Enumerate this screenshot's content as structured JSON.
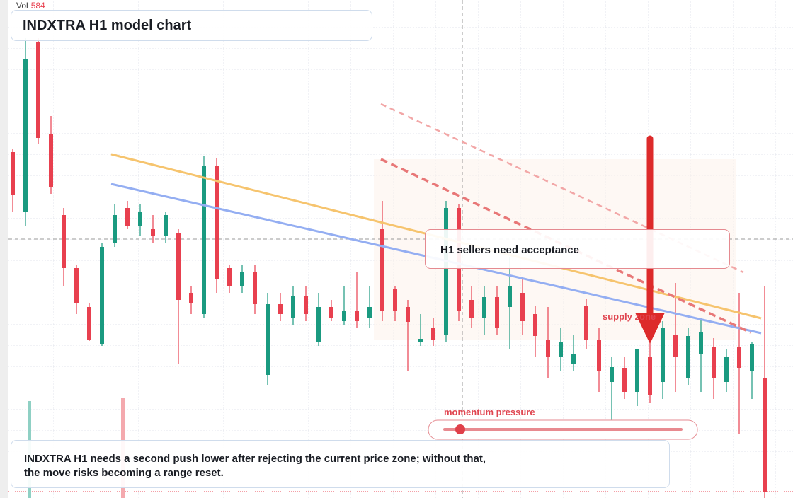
{
  "chart_data": {
    "type": "candlestick",
    "title": "INDXTRA H1 model chart",
    "volume_label": "Vol",
    "volume_value": 584,
    "callout": "H1 sellers need acceptance",
    "zone_label": "supply zone",
    "meter_label": "momentum pressure",
    "footer": [
      "INDXTRA H1 needs a second push lower after rejecting the current price zone; without that,",
      "the move risks becoming a range reset."
    ],
    "ylim": [
      0,
      704
    ],
    "up_color": "#1a9a80",
    "down_color": "#e8404f",
    "ohlc": [
      [
        489,
        494,
        404,
        429
      ],
      [
        404,
        650,
        384,
        620
      ],
      [
        644,
        650,
        500,
        509
      ],
      [
        514,
        540,
        430,
        440
      ],
      [
        400,
        410,
        300,
        325
      ],
      [
        325,
        330,
        260,
        275
      ],
      [
        270,
        275,
        222,
        224
      ],
      [
        218,
        360,
        215,
        355
      ],
      [
        360,
        415,
        355,
        400
      ],
      [
        410,
        420,
        380,
        385
      ],
      [
        385,
        415,
        370,
        405
      ],
      [
        380,
        400,
        360,
        370
      ],
      [
        370,
        405,
        360,
        400
      ],
      [
        375,
        380,
        190,
        280
      ],
      [
        290,
        300,
        260,
        275
      ],
      [
        260,
        484,
        255,
        470
      ],
      [
        470,
        480,
        290,
        310
      ],
      [
        325,
        330,
        290,
        300
      ],
      [
        300,
        330,
        290,
        320
      ],
      [
        320,
        330,
        260,
        274
      ],
      [
        174,
        290,
        160,
        274
      ],
      [
        274,
        290,
        250,
        260
      ],
      [
        254,
        300,
        245,
        285
      ],
      [
        285,
        300,
        250,
        260
      ],
      [
        220,
        290,
        215,
        270
      ],
      [
        270,
        280,
        250,
        255
      ],
      [
        250,
        300,
        245,
        264
      ],
      [
        264,
        320,
        240,
        250
      ],
      [
        255,
        300,
        240,
        270
      ],
      [
        380,
        420,
        250,
        265
      ],
      [
        295,
        300,
        250,
        264
      ],
      [
        270,
        280,
        180,
        249
      ],
      [
        220,
        260,
        215,
        225
      ],
      [
        240,
        255,
        215,
        224
      ],
      [
        230,
        420,
        220,
        410
      ],
      [
        410,
        415,
        250,
        264
      ],
      [
        280,
        300,
        240,
        254
      ],
      [
        254,
        300,
        230,
        284
      ],
      [
        284,
        300,
        230,
        240
      ],
      [
        270,
        340,
        210,
        300
      ],
      [
        290,
        310,
        230,
        250
      ],
      [
        260,
        272,
        200,
        229
      ],
      [
        224,
        270,
        170,
        200
      ],
      [
        200,
        240,
        180,
        220
      ],
      [
        190,
        230,
        180,
        204
      ],
      [
        272,
        282,
        210,
        224
      ],
      [
        224,
        240,
        150,
        180
      ],
      [
        164,
        200,
        90,
        185
      ],
      [
        184,
        200,
        140,
        150
      ],
      [
        150,
        210,
        130,
        210
      ],
      [
        200,
        220,
        135,
        145
      ],
      [
        164,
        250,
        140,
        240
      ],
      [
        230,
        304,
        150,
        200
      ],
      [
        170,
        240,
        160,
        229
      ],
      [
        204,
        254,
        150,
        234
      ],
      [
        214,
        226,
        140,
        170
      ],
      [
        164,
        210,
        150,
        200
      ],
      [
        214,
        290,
        90,
        184
      ],
      [
        180,
        220,
        140,
        217
      ],
      [
        169,
        300,
        0,
        9
      ]
    ]
  }
}
